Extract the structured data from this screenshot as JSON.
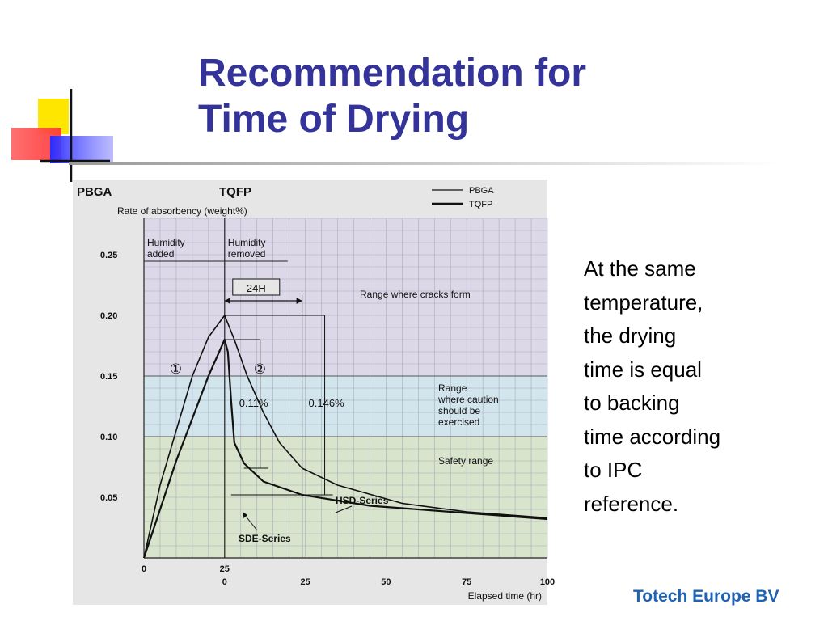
{
  "slide": {
    "title_line1": "Recommendation for",
    "title_line2": "Time of Drying",
    "body_text": " At the same\ntemperature,\nthe drying\ntime is equal\nto backing\ntime according\nto IPC\nreference.",
    "company": "Totech Europe BV",
    "colors": {
      "title": "#333399",
      "company": "#1d62b4"
    }
  },
  "chart_data": {
    "type": "line",
    "top_labels": [
      "PBGA",
      "TQFP"
    ],
    "ylabel": "Rate of absorbency (weight%)",
    "xlabel": "Elapsed time (hr)",
    "ylim": [
      0,
      0.28
    ],
    "xlim": [
      0,
      125
    ],
    "y_ticks": [
      "0.25",
      "0.20",
      "0.15",
      "0.10",
      "0.05"
    ],
    "y_tick_values": [
      0.25,
      0.2,
      0.15,
      0.1,
      0.05
    ],
    "x_ticks_top": [
      "0",
      "25"
    ],
    "x_ticks_top_values": [
      0,
      25
    ],
    "x_ticks": [
      "0",
      "25",
      "50",
      "75",
      "100"
    ],
    "x_tick_values": [
      0,
      25,
      50,
      75,
      100
    ],
    "grid": true,
    "legend": [
      {
        "name": "PBGA",
        "style": "thin"
      },
      {
        "name": "TQFP",
        "style": "thick"
      }
    ],
    "legend_position": "top-right",
    "zones": [
      {
        "label": "Range where cracks form",
        "from": 0.15,
        "to": 0.28,
        "color": "#dcd8e8"
      },
      {
        "label_lines": [
          "Range",
          "where caution",
          "should be",
          "exercised"
        ],
        "from": 0.1,
        "to": 0.15,
        "color": "#d2e4ec"
      },
      {
        "label": "Safety range",
        "from": 0,
        "to": 0.1,
        "color": "#d8e4cc"
      }
    ],
    "phases": [
      {
        "label_lines": [
          "Humidity",
          "added"
        ],
        "marker": "①"
      },
      {
        "label_lines": [
          "Humidity",
          "removed"
        ],
        "marker": "②"
      }
    ],
    "annotations": {
      "interval_label": "24H",
      "interval": [
        25,
        49
      ],
      "diff_labels": [
        "0.11%",
        "0.146%"
      ],
      "series_labels": [
        "HSD-Series",
        "SDE-Series"
      ]
    },
    "series": [
      {
        "name": "PBGA",
        "points": [
          [
            0,
            0
          ],
          [
            5,
            0.06
          ],
          [
            10,
            0.105
          ],
          [
            15,
            0.15
          ],
          [
            20,
            0.182
          ],
          [
            25,
            0.2
          ],
          [
            28,
            0.18
          ],
          [
            32,
            0.15
          ],
          [
            37,
            0.12
          ],
          [
            42,
            0.095
          ],
          [
            49,
            0.074
          ],
          [
            60,
            0.06
          ],
          [
            80,
            0.045
          ],
          [
            100,
            0.038
          ],
          [
            125,
            0.033
          ]
        ]
      },
      {
        "name": "TQFP",
        "points": [
          [
            0,
            0
          ],
          [
            5,
            0.04
          ],
          [
            10,
            0.08
          ],
          [
            15,
            0.115
          ],
          [
            20,
            0.15
          ],
          [
            25,
            0.18
          ],
          [
            26,
            0.17
          ],
          [
            27,
            0.13
          ],
          [
            28,
            0.095
          ],
          [
            31,
            0.078
          ],
          [
            37,
            0.063
          ],
          [
            49,
            0.052
          ],
          [
            70,
            0.043
          ],
          [
            100,
            0.037
          ],
          [
            125,
            0.032
          ]
        ]
      }
    ]
  }
}
